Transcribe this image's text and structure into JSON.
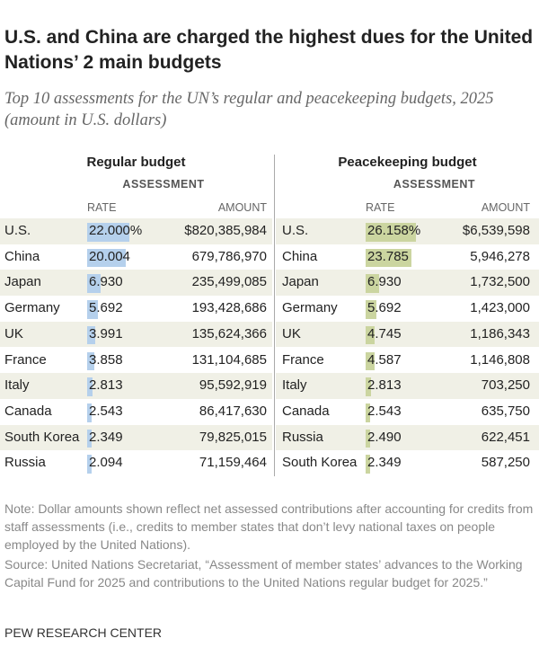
{
  "header": {
    "title": "U.S. and China are charged the highest dues for the United Nations’ 2 main budgets",
    "subtitle": "Top 10 assessments for the UN’s regular and peacekeeping budgets, 2025 (amount in U.S. dollars)"
  },
  "tables": [
    {
      "title": "Regular budget",
      "group_header": "ASSESSMENT",
      "columns": [
        "RATE",
        "AMOUNT"
      ],
      "color": "#b5d0ec",
      "countries": [
        "U.S.",
        "China",
        "Japan",
        "Germany",
        "UK",
        "France",
        "Italy",
        "Canada",
        "South Korea",
        "Russia"
      ],
      "values": [
        22.0,
        20.004,
        6.93,
        5.692,
        3.991,
        3.858,
        2.813,
        2.543,
        2.349,
        2.094
      ],
      "value_labels": [
        "22.000%",
        "20.004",
        "6.930",
        "5.692",
        "3.991",
        "3.858",
        "2.813",
        "2.543",
        "2.349",
        "2.094"
      ],
      "amounts": [
        "$820,385,984",
        "679,786,970",
        "235,499,085",
        "193,428,686",
        "135,624,366",
        "131,104,685",
        "95,592,919",
        "86,417,630",
        "79,825,015",
        "71,159,464"
      ]
    },
    {
      "title": "Peacekeeping budget",
      "group_header": "ASSESSMENT",
      "columns": [
        "RATE",
        "AMOUNT"
      ],
      "color": "#cbd5a0",
      "countries": [
        "U.S.",
        "China",
        "Japan",
        "Germany",
        "UK",
        "France",
        "Italy",
        "Canada",
        "Russia",
        "South Korea"
      ],
      "values": [
        26.158,
        23.785,
        6.93,
        5.692,
        4.745,
        4.587,
        2.813,
        2.543,
        2.49,
        2.349
      ],
      "value_labels": [
        "26.158%",
        "23.785",
        "6.930",
        "5.692",
        "4.745",
        "4.587",
        "2.813",
        "2.543",
        "2.490",
        "2.349"
      ],
      "amounts": [
        "$6,539,598",
        "5,946,278",
        "1,732,500",
        "1,423,000",
        "1,186,343",
        "1,146,808",
        "703,250",
        "635,750",
        "622,451",
        "587,250"
      ]
    }
  ],
  "notes": [
    "Note: Dollar amounts shown reflect net assessed contributions after accounting for credits from staff assessments (i.e., credits to member states that don’t levy national taxes on people employed by the United Nations).",
    "Source: United Nations Secretariat, “Assessment of member states’ advances to the Working Capital Fund for 2025 and contributions to the United Nations regular budget for 2025.”"
  ],
  "footer": "PEW RESEARCH CENTER"
}
